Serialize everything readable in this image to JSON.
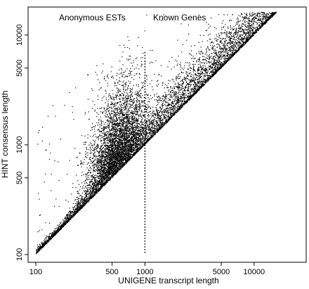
{
  "chart_data": {
    "type": "scatter",
    "title": "",
    "xlabel": "UNIGENE transcript length",
    "ylabel": "HINT consensus length",
    "x_scale": "log",
    "y_scale": "log",
    "xlim": [
      85,
      30000
    ],
    "ylim": [
      85,
      18000
    ],
    "x_ticks": [
      100,
      500,
      1000,
      5000,
      10000
    ],
    "x_tick_labels": [
      "100",
      "500",
      "1000",
      "5000",
      "10000"
    ],
    "y_ticks": [
      100,
      500,
      1000,
      5000,
      10000
    ],
    "y_tick_labels": [
      "100",
      "500",
      "1000",
      "5000",
      "10000"
    ],
    "grid": false,
    "legend": "none",
    "reference_line": {
      "x": 1000,
      "y_range": [
        100,
        7000
      ],
      "style": "dotted"
    },
    "annotations": [
      {
        "text": "Anonymous ESTs",
        "x": 250,
        "y": 12000
      },
      {
        "text": "Known Genes",
        "x": 2500,
        "y": 12000
      }
    ],
    "points_summary": "approx. tens of thousands of points, all on or above y = x; dense cluster around x 400-800 up to y ~3000; broad spread for known genes up to x ~ 20000",
    "point_color": "#000000"
  }
}
